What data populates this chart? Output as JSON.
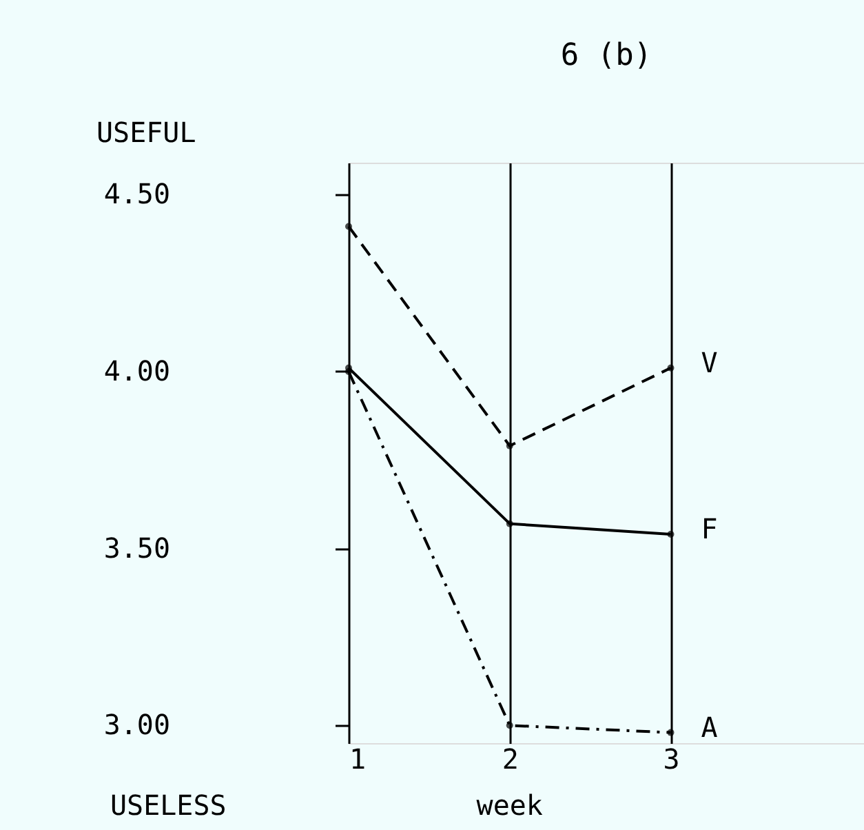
{
  "chart_data": {
    "type": "line",
    "title": "6 (b)",
    "xlabel": "week",
    "x": [
      1,
      2,
      3
    ],
    "xlim": [
      1,
      4.2
    ],
    "xticks": [
      1,
      2,
      3
    ],
    "ylim": [
      2.95,
      4.59
    ],
    "yticks": [
      {
        "value": 3.0,
        "label": "3.00"
      },
      {
        "value": 3.5,
        "label": "3.50"
      },
      {
        "value": 4.0,
        "label": "4.00"
      },
      {
        "value": 4.5,
        "label": "4.50"
      }
    ],
    "series": [
      {
        "name": "V",
        "color": "#000000",
        "line_style": "dashed",
        "values": [
          4.41,
          3.79,
          4.01
        ]
      },
      {
        "name": "F",
        "color": "#000000",
        "line_style": "solid",
        "values": [
          4.01,
          3.57,
          3.54
        ]
      },
      {
        "name": "A",
        "color": "#000000",
        "line_style": "dotted",
        "values": [
          4.0,
          3.0,
          2.98
        ]
      }
    ],
    "annotations": [
      "USEFUL",
      "USELESS"
    ],
    "grid": "x",
    "marker": "circle"
  }
}
